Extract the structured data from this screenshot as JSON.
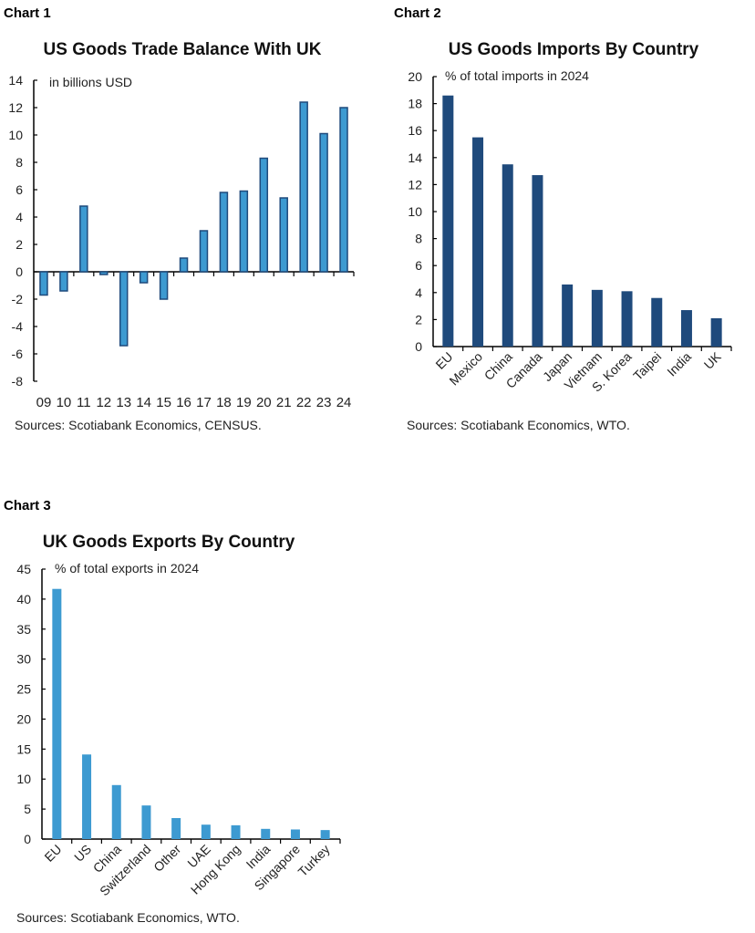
{
  "chart_data": [
    {
      "type": "bar",
      "label": "Chart 1",
      "title": "US Goods Trade Balance With UK",
      "unit_note": "in billions USD",
      "source": "Sources: Scotiabank Economics, CENSUS.",
      "categories": [
        "09",
        "10",
        "11",
        "12",
        "13",
        "14",
        "15",
        "16",
        "17",
        "18",
        "19",
        "20",
        "21",
        "22",
        "23",
        "24"
      ],
      "values": [
        -1.7,
        -1.4,
        4.8,
        -0.2,
        -5.4,
        -0.8,
        -2.0,
        1.0,
        3.0,
        5.8,
        5.9,
        8.3,
        5.4,
        12.4,
        10.1,
        12.0
      ],
      "ylim": [
        -8,
        14
      ],
      "yticks": [
        -8,
        -6,
        -4,
        -2,
        0,
        2,
        4,
        6,
        8,
        10,
        12,
        14
      ],
      "bar_color": "#3d9ad1",
      "bar_edge_color": "#1f4a7c",
      "grid": false
    },
    {
      "type": "bar",
      "label": "Chart 2",
      "title": "US Goods Imports By Country",
      "unit_note": "% of total imports in 2024",
      "source": "Sources: Scotiabank Economics, WTO.",
      "categories": [
        "EU",
        "Mexico",
        "China",
        "Canada",
        "Japan",
        "Vietnam",
        "S. Korea",
        "Taipei",
        "India",
        "UK"
      ],
      "values": [
        18.6,
        15.5,
        13.5,
        12.7,
        4.6,
        4.2,
        4.1,
        3.6,
        2.7,
        2.1
      ],
      "ylim": [
        0,
        20
      ],
      "yticks": [
        0,
        2,
        4,
        6,
        8,
        10,
        12,
        14,
        16,
        18,
        20
      ],
      "bar_color": "#1f4a7c",
      "grid": false
    },
    {
      "type": "bar",
      "label": "Chart 3",
      "title": "UK Goods Exports By Country",
      "unit_note": "% of total exports in 2024",
      "source": "Sources: Scotiabank Economics, WTO.",
      "categories": [
        "EU",
        "US",
        "China",
        "Switzerland",
        "Other",
        "UAE",
        "Hong Kong",
        "India",
        "Singapore",
        "Turkey"
      ],
      "values": [
        41.7,
        14.1,
        9.0,
        5.6,
        3.5,
        2.4,
        2.3,
        1.7,
        1.6,
        1.5
      ],
      "ylim": [
        0,
        45
      ],
      "yticks": [
        0,
        5,
        10,
        15,
        20,
        25,
        30,
        35,
        40,
        45
      ],
      "bar_color": "#3d9ad1",
      "grid": false
    }
  ]
}
